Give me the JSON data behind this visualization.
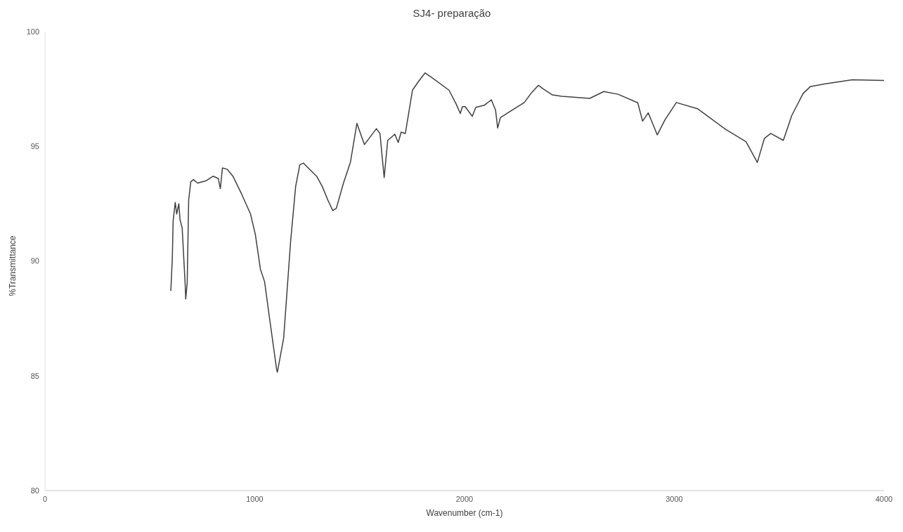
{
  "chart_data": {
    "type": "line",
    "title": "SJ4- preparação",
    "xlabel": "Wavenumber (cm-1)",
    "ylabel": "%Transmittance",
    "xlim": [
      0,
      4000
    ],
    "xticks": [
      0,
      1000,
      2000,
      3000,
      4000
    ],
    "ylim": [
      80,
      100
    ],
    "yticks": [
      80,
      85,
      90,
      95,
      100
    ],
    "grid": false,
    "legend": false,
    "marker": "none",
    "line_style": "solid",
    "series": [
      {
        "color": "#404040",
        "x": [
          600,
          607,
          611,
          621,
          628,
          638,
          644,
          654,
          668,
          671,
          678,
          685,
          695,
          708,
          728,
          768,
          802,
          826,
          836,
          846,
          869,
          896,
          936,
          980,
          1003,
          1027,
          1047,
          1070,
          1104,
          1108,
          1138,
          1171,
          1195,
          1215,
          1232,
          1255,
          1295,
          1322,
          1349,
          1372,
          1389,
          1423,
          1456,
          1487,
          1523,
          1580,
          1597,
          1617,
          1634,
          1668,
          1684,
          1698,
          1718,
          1752,
          1782,
          1812,
          1836,
          1926,
          1960,
          1980,
          1990,
          2003,
          2037,
          2054,
          2094,
          2128,
          2148,
          2158,
          2171,
          2238,
          2285,
          2319,
          2352,
          2376,
          2419,
          2463,
          2597,
          2664,
          2732,
          2826,
          2849,
          2876,
          2919,
          2956,
          3010,
          3111,
          3178,
          3245,
          3342,
          3396,
          3430,
          3460,
          3520,
          3560,
          3614,
          3648,
          3715,
          3849,
          4000
        ],
        "values": [
          88.7,
          90.1,
          91.75,
          92.56,
          92.05,
          92.5,
          91.8,
          91.45,
          89.05,
          88.35,
          89.05,
          92.65,
          93.46,
          93.55,
          93.4,
          93.5,
          93.7,
          93.6,
          93.16,
          94.06,
          94.0,
          93.7,
          92.95,
          92.05,
          91.15,
          89.65,
          89.1,
          87.55,
          85.3,
          85.16,
          86.65,
          90.85,
          93.25,
          94.2,
          94.27,
          94.06,
          93.7,
          93.25,
          92.65,
          92.2,
          92.3,
          93.4,
          94.3,
          96.0,
          95.08,
          95.77,
          95.56,
          93.64,
          95.26,
          95.53,
          95.17,
          95.62,
          95.56,
          97.45,
          97.84,
          98.2,
          98.05,
          97.45,
          96.85,
          96.43,
          96.73,
          96.73,
          96.31,
          96.7,
          96.79,
          97.03,
          96.58,
          95.8,
          96.25,
          96.64,
          96.91,
          97.33,
          97.66,
          97.5,
          97.24,
          97.18,
          97.09,
          97.39,
          97.27,
          96.9,
          96.1,
          96.46,
          95.5,
          96.16,
          96.91,
          96.64,
          96.19,
          95.74,
          95.2,
          94.3,
          95.35,
          95.56,
          95.26,
          96.34,
          97.3,
          97.6,
          97.72,
          97.9,
          97.87
        ]
      }
    ]
  }
}
